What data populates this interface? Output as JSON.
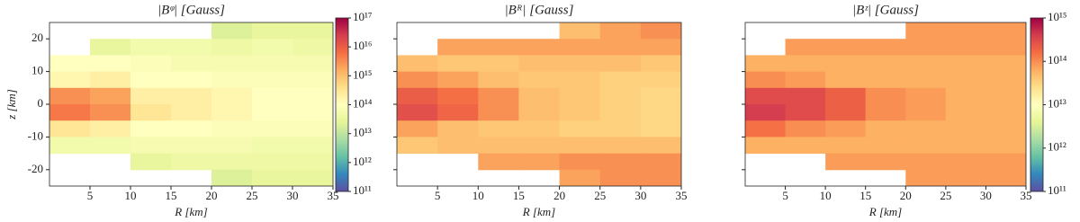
{
  "chart_data": [
    {
      "type": "heatmap",
      "title": "|Bᵠ| [Gauss]",
      "xlabel": "R [km]",
      "ylabel": "z [km]",
      "xlim": [
        0,
        35
      ],
      "ylim": [
        -25,
        25
      ],
      "xticks": [
        5,
        10,
        15,
        20,
        25,
        30,
        35
      ],
      "yticks": [
        -20,
        -10,
        0,
        10,
        20
      ],
      "show_ytick_labels": true,
      "log_color": true,
      "zlim": [
        100000000000.0,
        1e+17
      ],
      "colormap": [
        "#5e4fa2",
        "#3288bd",
        "#66c2a5",
        "#abdda4",
        "#e6f598",
        "#ffffbf",
        "#fee08b",
        "#fdae61",
        "#f46d43",
        "#d53e4f",
        "#9e0142"
      ],
      "colorbar": true,
      "colorbar_ticks": [
        {
          "value": 100000000000.0,
          "label": "10¹¹"
        },
        {
          "value": 1000000000000.0,
          "label": "10¹²"
        },
        {
          "value": 10000000000000.0,
          "label": "10¹³"
        },
        {
          "value": 100000000000000.0,
          "label": "10¹⁴"
        },
        {
          "value": 1000000000000000.0,
          "label": "10¹⁵"
        },
        {
          "value": 1e+16,
          "label": "10¹⁶"
        },
        {
          "value": 1e+17,
          "label": "10¹⁷"
        }
      ],
      "xbins": [
        0,
        5,
        10,
        15,
        20,
        25,
        30,
        35
      ],
      "ybins": [
        25,
        20,
        15,
        10,
        5,
        0,
        -5,
        -10,
        -15,
        -20,
        -25
      ],
      "values": [
        [
          null,
          null,
          null,
          null,
          20000000000000.0,
          30000000000000.0,
          30000000000000.0
        ],
        [
          null,
          30000000000000.0,
          50000000000000.0,
          50000000000000.0,
          40000000000000.0,
          50000000000000.0,
          40000000000000.0
        ],
        [
          100000000000000.0,
          100000000000000.0,
          80000000000000.0,
          60000000000000.0,
          60000000000000.0,
          60000000000000.0,
          60000000000000.0
        ],
        [
          150000000000000.0,
          200000000000000.0,
          100000000000000.0,
          100000000000000.0,
          80000000000000.0,
          80000000000000.0,
          80000000000000.0
        ],
        [
          3000000000000000.0,
          2000000000000000.0,
          200000000000000.0,
          200000000000000.0,
          150000000000000.0,
          100000000000000.0,
          100000000000000.0
        ],
        [
          5000000000000000.0,
          3000000000000000.0,
          300000000000000.0,
          200000000000000.0,
          150000000000000.0,
          100000000000000.0,
          100000000000000.0
        ],
        [
          300000000000000.0,
          200000000000000.0,
          100000000000000.0,
          100000000000000.0,
          80000000000000.0,
          80000000000000.0,
          80000000000000.0
        ],
        [
          50000000000000.0,
          50000000000000.0,
          60000000000000.0,
          60000000000000.0,
          60000000000000.0,
          50000000000000.0,
          50000000000000.0
        ],
        [
          null,
          null,
          30000000000000.0,
          40000000000000.0,
          40000000000000.0,
          40000000000000.0,
          40000000000000.0
        ],
        [
          null,
          null,
          null,
          null,
          20000000000000.0,
          30000000000000.0,
          30000000000000.0
        ]
      ]
    },
    {
      "type": "heatmap",
      "title": "|Bᴿ| [Gauss]",
      "xlabel": "R [km]",
      "xlim": [
        0,
        35
      ],
      "ylim": [
        -25,
        25
      ],
      "xticks": [
        5,
        10,
        15,
        20,
        25,
        30,
        35
      ],
      "yticks": [
        -20,
        -10,
        0,
        10,
        20
      ],
      "show_ytick_labels": false,
      "log_color": true,
      "zlim": [
        100000000000.0,
        1e+17
      ],
      "colormap": [
        "#5e4fa2",
        "#3288bd",
        "#66c2a5",
        "#abdda4",
        "#e6f598",
        "#ffffbf",
        "#fee08b",
        "#fdae61",
        "#f46d43",
        "#d53e4f",
        "#9e0142"
      ],
      "colorbar": false,
      "xbins": [
        0,
        5,
        10,
        15,
        20,
        25,
        30,
        35
      ],
      "ybins": [
        25,
        20,
        15,
        10,
        5,
        0,
        -5,
        -10,
        -15,
        -20,
        -25
      ],
      "values": [
        [
          null,
          null,
          null,
          null,
          1000000000000000.0,
          2000000000000000.0,
          3000000000000000.0
        ],
        [
          null,
          2000000000000000.0,
          2000000000000000.0,
          2000000000000000.0,
          2000000000000000.0,
          2000000000000000.0,
          2000000000000000.0
        ],
        [
          1000000000000000.0,
          800000000000000.0,
          800000000000000.0,
          1000000000000000.0,
          1000000000000000.0,
          1000000000000000.0,
          800000000000000.0
        ],
        [
          3000000000000000.0,
          2000000000000000.0,
          1000000000000000.0,
          800000000000000.0,
          800000000000000.0,
          600000000000000.0,
          600000000000000.0
        ],
        [
          1e+16,
          6000000000000000.0,
          3000000000000000.0,
          1000000000000000.0,
          800000000000000.0,
          600000000000000.0,
          500000000000000.0
        ],
        [
          1.5e+16,
          8000000000000000.0,
          3000000000000000.0,
          1000000000000000.0,
          800000000000000.0,
          600000000000000.0,
          500000000000000.0
        ],
        [
          2000000000000000.0,
          1000000000000000.0,
          800000000000000.0,
          800000000000000.0,
          600000000000000.0,
          600000000000000.0,
          500000000000000.0
        ],
        [
          800000000000000.0,
          1000000000000000.0,
          1000000000000000.0,
          1000000000000000.0,
          1000000000000000.0,
          1000000000000000.0,
          1000000000000000.0
        ],
        [
          null,
          null,
          2000000000000000.0,
          2000000000000000.0,
          3000000000000000.0,
          3000000000000000.0,
          3000000000000000.0
        ],
        [
          null,
          null,
          null,
          null,
          2000000000000000.0,
          3000000000000000.0,
          3000000000000000.0
        ]
      ]
    },
    {
      "type": "heatmap",
      "title": "|Bᶻ| [Gauss]",
      "xlabel": "R [km]",
      "xlim": [
        0,
        35
      ],
      "ylim": [
        -25,
        25
      ],
      "xticks": [
        5,
        10,
        15,
        20,
        25,
        30,
        35
      ],
      "yticks": [
        -20,
        -10,
        0,
        10,
        20
      ],
      "show_ytick_labels": false,
      "log_color": true,
      "zlim": [
        100000000000.0,
        1000000000000000.0
      ],
      "colormap": [
        "#5e4fa2",
        "#3288bd",
        "#66c2a5",
        "#abdda4",
        "#e6f598",
        "#ffffbf",
        "#fee08b",
        "#fdae61",
        "#f46d43",
        "#d53e4f",
        "#9e0142"
      ],
      "colorbar": true,
      "colorbar_ticks": [
        {
          "value": 100000000000.0,
          "label": "10¹¹"
        },
        {
          "value": 1000000000000.0,
          "label": "10¹²"
        },
        {
          "value": 10000000000000.0,
          "label": "10¹³"
        },
        {
          "value": 100000000000000.0,
          "label": "10¹⁴"
        },
        {
          "value": 1000000000000000.0,
          "label": "10¹⁵"
        }
      ],
      "xbins": [
        0,
        5,
        10,
        15,
        20,
        25,
        30,
        35
      ],
      "ybins": [
        25,
        20,
        15,
        10,
        5,
        0,
        -5,
        -10,
        -15,
        -20,
        -25
      ],
      "values": [
        [
          null,
          null,
          null,
          null,
          80000000000000.0,
          80000000000000.0,
          80000000000000.0
        ],
        [
          null,
          80000000000000.0,
          80000000000000.0,
          80000000000000.0,
          80000000000000.0,
          80000000000000.0,
          80000000000000.0
        ],
        [
          60000000000000.0,
          60000000000000.0,
          60000000000000.0,
          60000000000000.0,
          60000000000000.0,
          60000000000000.0,
          60000000000000.0
        ],
        [
          100000000000000.0,
          80000000000000.0,
          60000000000000.0,
          60000000000000.0,
          60000000000000.0,
          60000000000000.0,
          60000000000000.0
        ],
        [
          300000000000000.0,
          300000000000000.0,
          200000000000000.0,
          100000000000000.0,
          80000000000000.0,
          60000000000000.0,
          60000000000000.0
        ],
        [
          400000000000000.0,
          300000000000000.0,
          200000000000000.0,
          100000000000000.0,
          80000000000000.0,
          60000000000000.0,
          60000000000000.0
        ],
        [
          150000000000000.0,
          100000000000000.0,
          80000000000000.0,
          60000000000000.0,
          60000000000000.0,
          60000000000000.0,
          60000000000000.0
        ],
        [
          60000000000000.0,
          60000000000000.0,
          60000000000000.0,
          60000000000000.0,
          60000000000000.0,
          60000000000000.0,
          60000000000000.0
        ],
        [
          null,
          null,
          80000000000000.0,
          80000000000000.0,
          80000000000000.0,
          80000000000000.0,
          80000000000000.0
        ],
        [
          null,
          null,
          null,
          null,
          80000000000000.0,
          80000000000000.0,
          80000000000000.0
        ]
      ]
    }
  ]
}
